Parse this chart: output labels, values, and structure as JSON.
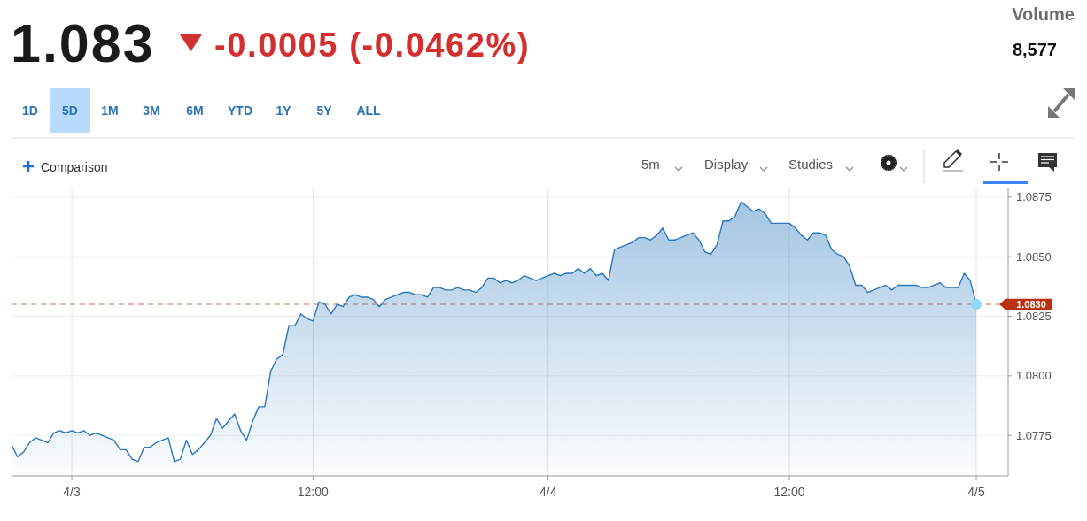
{
  "chart_data": {
    "type": "area",
    "title": "1.083",
    "subtitle": "-0.0005 (-0.0462%)",
    "annotations": [
      "Volume",
      "8,577",
      "1D",
      "5D",
      "1M",
      "3M",
      "6M",
      "YTD",
      "1Y",
      "5Y",
      "ALL",
      "Comparison",
      "5m",
      "Display",
      "Studies"
    ],
    "categories": [
      null,
      null,
      null,
      null,
      null,
      null,
      null,
      null,
      null,
      null,
      "4/3",
      null,
      null,
      null,
      null,
      null,
      null,
      null,
      null,
      null,
      null,
      null,
      null,
      null,
      null,
      null,
      null,
      null,
      null,
      null,
      null,
      null,
      null,
      null,
      null,
      null,
      null,
      null,
      null,
      null,
      null,
      null,
      null,
      null,
      null,
      null,
      null,
      null,
      null,
      null,
      "12:00",
      null,
      null,
      null,
      null,
      null,
      null,
      null,
      null,
      null,
      null,
      null,
      null,
      null,
      null,
      null,
      null,
      null,
      null,
      null,
      null,
      null,
      null,
      null,
      null,
      null,
      null,
      null,
      null,
      null,
      null,
      null,
      null,
      null,
      null,
      null,
      null,
      null,
      null,
      "4/4",
      null,
      null,
      null,
      null,
      null,
      null,
      null,
      null,
      null,
      null,
      null,
      null,
      null,
      null,
      null,
      null,
      null,
      null,
      null,
      null,
      null,
      null,
      null,
      null,
      null,
      null,
      null,
      null,
      null,
      null,
      null,
      null,
      null,
      null,
      null,
      null,
      null,
      null,
      null,
      "12:00",
      null,
      null,
      null,
      null,
      null,
      null,
      null,
      null,
      null,
      null,
      null,
      null,
      null,
      null,
      null,
      null,
      null,
      null,
      null,
      null,
      null,
      null,
      null,
      null,
      null,
      null,
      null,
      null,
      null,
      null,
      "4/5"
    ],
    "values": [
      1.0771,
      1.0766,
      1.0768,
      1.0772,
      1.0774,
      1.0773,
      1.0772,
      1.0776,
      1.0777,
      1.0776,
      1.0777,
      1.0776,
      1.0777,
      1.0775,
      1.0776,
      1.0775,
      1.0774,
      1.0773,
      1.0769,
      1.0769,
      1.0765,
      1.0764,
      1.077,
      1.077,
      1.0772,
      1.0773,
      1.0774,
      1.0764,
      1.0765,
      1.0773,
      1.0767,
      1.0769,
      1.0772,
      1.0775,
      1.0782,
      1.0778,
      1.0781,
      1.0784,
      1.0777,
      1.0773,
      1.0781,
      1.0787,
      1.0787,
      1.0802,
      1.0807,
      1.0809,
      1.0821,
      1.0821,
      1.0826,
      1.0824,
      1.0823,
      1.0831,
      1.083,
      1.0826,
      1.083,
      1.0829,
      1.0833,
      1.0834,
      1.0833,
      1.0833,
      1.0832,
      1.0829,
      1.0832,
      1.0833,
      1.0834,
      1.0835,
      1.0835,
      1.0834,
      1.0834,
      1.0833,
      1.0837,
      1.0837,
      1.0836,
      1.0836,
      1.0837,
      1.0836,
      1.0836,
      1.0835,
      1.0837,
      1.0841,
      1.0841,
      1.0839,
      1.084,
      1.0839,
      1.084,
      1.0842,
      1.0841,
      1.084,
      1.0841,
      1.0842,
      1.0843,
      1.0842,
      1.0843,
      1.0843,
      1.0845,
      1.0843,
      1.0845,
      1.0842,
      1.0843,
      1.084,
      1.0853,
      1.0854,
      1.0855,
      1.0856,
      1.0858,
      1.0858,
      1.0857,
      1.0859,
      1.0862,
      1.0857,
      1.0857,
      1.0858,
      1.0859,
      1.086,
      1.0857,
      1.0852,
      1.0851,
      1.0855,
      1.0865,
      1.0865,
      1.0867,
      1.0873,
      1.0871,
      1.0869,
      1.087,
      1.0868,
      1.0864,
      1.0864,
      1.0864,
      1.0864,
      1.0862,
      1.0859,
      1.0857,
      1.086,
      1.086,
      1.0859,
      1.0853,
      1.0851,
      1.085,
      1.0846,
      1.0838,
      1.0838,
      1.0835,
      1.0836,
      1.0837,
      1.0838,
      1.0836,
      1.0838,
      1.0838,
      1.0838,
      1.0838,
      1.0837,
      1.0837,
      1.0838,
      1.0839,
      1.0837,
      1.0837,
      1.0837,
      1.0843,
      1.084,
      1.083
    ],
    "color": "#2a78bc",
    "ylim": [
      1.0758,
      1.0879
    ],
    "yticks": [
      1.0775,
      {
        "value": 1.08,
        "label": "1.0800"
      },
      1.0825,
      {
        "value": 1.085,
        "label": "1.0850"
      },
      1.0875
    ],
    "grid": true,
    "ref_lines": [
      {
        "axis": "y",
        "value": 1.083,
        "label": "1.0830",
        "color": "#b8300f",
        "line_style": "dashed"
      }
    ]
  }
}
